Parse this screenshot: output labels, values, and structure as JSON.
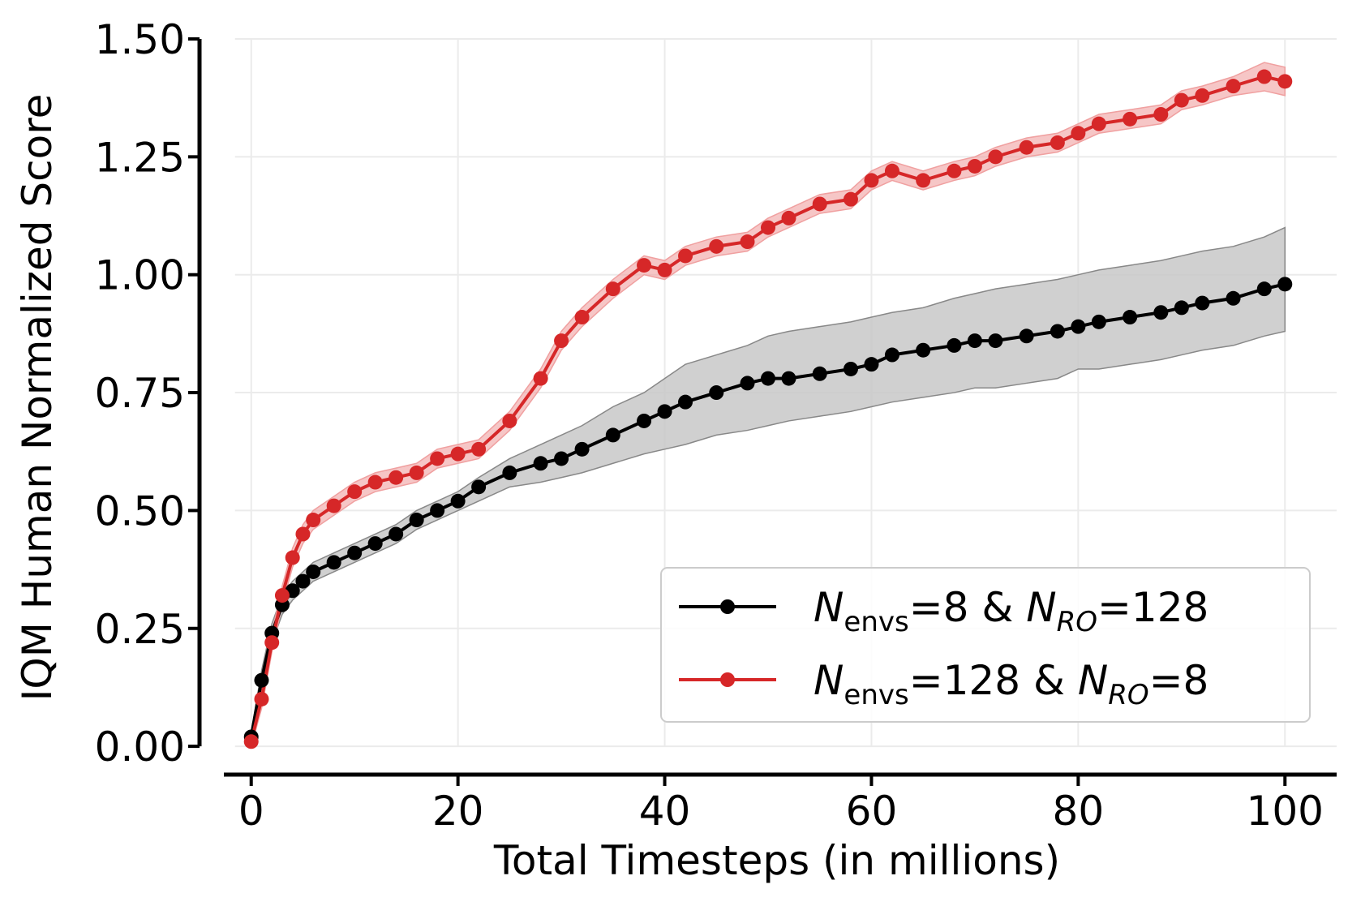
{
  "chart_data": {
    "type": "line",
    "title": "",
    "xlabel": "Total Timesteps (in millions)",
    "ylabel": "IQM Human Normalized Score",
    "xlim": [
      -5,
      105
    ],
    "ylim": [
      -0.06,
      1.5
    ],
    "xticks": [
      0,
      20,
      40,
      60,
      80,
      100
    ],
    "xtick_labels": [
      "0",
      "20",
      "40",
      "60",
      "80",
      "100"
    ],
    "yticks": [
      0.0,
      0.25,
      0.5,
      0.75,
      1.0,
      1.25,
      1.5
    ],
    "ytick_labels": [
      "0.00",
      "0.25",
      "0.50",
      "0.75",
      "1.00",
      "1.25",
      "1.50"
    ],
    "grid": true,
    "legend_position": "bottom-right",
    "series": [
      {
        "legend": {
          "base": "N",
          "sub1": "envs",
          "mid": "=8 & ",
          "base2": "N",
          "sub2": "RO",
          "tail": "=128"
        },
        "color": "#000000",
        "band_color": "#c8c8c8",
        "x": [
          0,
          1,
          2,
          3,
          4,
          5,
          6,
          8,
          10,
          12,
          14,
          16,
          18,
          20,
          22,
          25,
          28,
          30,
          32,
          35,
          38,
          40,
          42,
          45,
          48,
          50,
          52,
          55,
          58,
          60,
          62,
          65,
          68,
          70,
          72,
          75,
          78,
          80,
          82,
          85,
          88,
          90,
          92,
          95,
          98,
          100
        ],
        "y": [
          0.02,
          0.14,
          0.24,
          0.3,
          0.33,
          0.35,
          0.37,
          0.39,
          0.41,
          0.43,
          0.45,
          0.48,
          0.5,
          0.52,
          0.55,
          0.58,
          0.6,
          0.61,
          0.63,
          0.66,
          0.69,
          0.71,
          0.73,
          0.75,
          0.77,
          0.78,
          0.78,
          0.79,
          0.8,
          0.81,
          0.83,
          0.84,
          0.85,
          0.86,
          0.86,
          0.87,
          0.88,
          0.89,
          0.9,
          0.91,
          0.92,
          0.93,
          0.94,
          0.95,
          0.97,
          0.98
        ],
        "lower": [
          0.01,
          0.12,
          0.22,
          0.28,
          0.31,
          0.33,
          0.35,
          0.37,
          0.39,
          0.41,
          0.43,
          0.46,
          0.48,
          0.5,
          0.52,
          0.55,
          0.56,
          0.57,
          0.58,
          0.6,
          0.62,
          0.63,
          0.64,
          0.66,
          0.67,
          0.68,
          0.69,
          0.7,
          0.71,
          0.72,
          0.73,
          0.74,
          0.75,
          0.76,
          0.76,
          0.77,
          0.78,
          0.8,
          0.8,
          0.81,
          0.82,
          0.83,
          0.84,
          0.85,
          0.87,
          0.88
        ],
        "upper": [
          0.03,
          0.16,
          0.26,
          0.32,
          0.35,
          0.37,
          0.39,
          0.41,
          0.43,
          0.45,
          0.47,
          0.5,
          0.52,
          0.54,
          0.57,
          0.61,
          0.64,
          0.66,
          0.68,
          0.72,
          0.75,
          0.78,
          0.81,
          0.83,
          0.85,
          0.87,
          0.88,
          0.89,
          0.9,
          0.91,
          0.92,
          0.93,
          0.95,
          0.96,
          0.97,
          0.98,
          0.99,
          1.0,
          1.01,
          1.02,
          1.03,
          1.04,
          1.05,
          1.06,
          1.08,
          1.1
        ]
      },
      {
        "legend": {
          "base": "N",
          "sub1": "envs",
          "mid": "=128 & ",
          "base2": "N",
          "sub2": "RO",
          "tail": "=8"
        },
        "color": "#d62728",
        "band_color": "#f0a0a0",
        "x": [
          0,
          1,
          2,
          3,
          4,
          5,
          6,
          8,
          10,
          12,
          14,
          16,
          18,
          20,
          22,
          25,
          28,
          30,
          32,
          35,
          38,
          40,
          42,
          45,
          48,
          50,
          52,
          55,
          58,
          60,
          62,
          65,
          68,
          70,
          72,
          75,
          78,
          80,
          82,
          85,
          88,
          90,
          92,
          95,
          98,
          100
        ],
        "y": [
          0.01,
          0.1,
          0.22,
          0.32,
          0.4,
          0.45,
          0.48,
          0.51,
          0.54,
          0.56,
          0.57,
          0.58,
          0.61,
          0.62,
          0.63,
          0.69,
          0.78,
          0.86,
          0.91,
          0.97,
          1.02,
          1.01,
          1.04,
          1.06,
          1.07,
          1.1,
          1.12,
          1.15,
          1.16,
          1.2,
          1.22,
          1.2,
          1.22,
          1.23,
          1.25,
          1.27,
          1.28,
          1.3,
          1.32,
          1.33,
          1.34,
          1.37,
          1.38,
          1.4,
          1.42,
          1.41
        ],
        "lower": [
          0.0,
          0.08,
          0.2,
          0.3,
          0.38,
          0.43,
          0.46,
          0.49,
          0.52,
          0.54,
          0.55,
          0.56,
          0.59,
          0.6,
          0.61,
          0.67,
          0.76,
          0.84,
          0.89,
          0.95,
          1.0,
          0.99,
          1.02,
          1.04,
          1.05,
          1.08,
          1.1,
          1.13,
          1.14,
          1.18,
          1.2,
          1.18,
          1.2,
          1.21,
          1.23,
          1.25,
          1.26,
          1.28,
          1.3,
          1.31,
          1.32,
          1.35,
          1.36,
          1.38,
          1.39,
          1.38
        ],
        "upper": [
          0.02,
          0.12,
          0.24,
          0.34,
          0.42,
          0.47,
          0.5,
          0.53,
          0.56,
          0.58,
          0.59,
          0.6,
          0.63,
          0.64,
          0.65,
          0.71,
          0.8,
          0.88,
          0.93,
          0.99,
          1.04,
          1.03,
          1.06,
          1.08,
          1.09,
          1.12,
          1.14,
          1.17,
          1.18,
          1.22,
          1.24,
          1.22,
          1.24,
          1.25,
          1.27,
          1.29,
          1.3,
          1.32,
          1.34,
          1.35,
          1.36,
          1.39,
          1.4,
          1.42,
          1.45,
          1.44
        ]
      }
    ]
  }
}
